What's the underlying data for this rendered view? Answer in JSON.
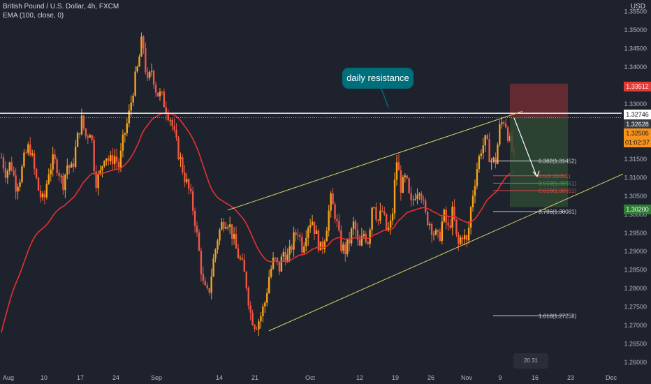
{
  "header": {
    "symbol_line": "British Pound / U.S. Dollar, 4h, FXCM",
    "indicator_line": "EMA (100, close, 0)"
  },
  "currency": "USD",
  "callout": {
    "text": "daily resistance"
  },
  "colors": {
    "background": "#1e222d",
    "bull": "#f7a21b",
    "bear": "#f05545",
    "ema": "#e6302f",
    "channel": "#d6d064",
    "resistance": "#ffffff",
    "stop_zone": "#7a2f33",
    "target_zone": "#2e4a33",
    "callout": "#006f7b"
  },
  "chart_data": {
    "type": "candlestick",
    "title": "British Pound / U.S. Dollar, 4h, FXCM",
    "y_axis": {
      "side": "right",
      "range": [
        1.2575,
        1.3555
      ],
      "ticks": [
        "1.35500",
        "1.35000",
        "1.34500",
        "1.34000",
        "1.33000",
        "1.32500",
        "1.32000",
        "1.31500",
        "1.31000",
        "1.30500",
        "1.30000",
        "1.29500",
        "1.29000",
        "1.28500",
        "1.28000",
        "1.27500",
        "1.27000",
        "1.26500",
        "1.26000"
      ]
    },
    "x_axis": {
      "ticks": [
        "Aug",
        "10",
        "17",
        "24",
        "Sep",
        "14",
        "21",
        "Oct",
        "12",
        "19",
        "26",
        "Nov",
        "9",
        "16",
        "23",
        "Dec"
      ]
    },
    "price_path": [
      [
        1.3155,
        1.3112,
        1.3143,
        1.308,
        1.3102,
        1.3158,
        1.3188,
        1.312,
        1.306,
        1.303
      ],
      [
        1.3118,
        1.3145,
        1.313,
        1.308,
        1.3135,
        1.312,
        1.3195,
        1.3258,
        1.321,
        1.3235
      ],
      [
        1.309,
        1.311,
        1.317,
        1.314,
        1.316,
        1.313,
        1.321,
        1.326,
        1.334,
        1.34
      ],
      [
        1.3482,
        1.335,
        1.3395,
        1.333,
        1.332,
        1.329,
        1.326,
        1.32,
        1.315,
        1.31
      ],
      [
        1.306,
        1.3,
        1.29,
        1.28,
        1.278,
        1.287,
        1.294,
        1.298,
        1.299,
        1.295
      ],
      [
        1.29,
        1.287,
        1.282,
        1.273,
        1.27,
        1.272,
        1.276,
        1.284,
        1.288,
        1.285
      ],
      [
        1.29,
        1.288,
        1.293,
        1.296,
        1.291,
        1.297,
        1.299,
        1.294,
        1.29,
        1.296
      ],
      [
        1.304,
        1.3,
        1.292,
        1.29,
        1.293,
        1.298,
        1.29,
        1.295,
        1.293,
        1.305
      ],
      [
        1.298,
        1.301,
        1.295,
        1.298,
        1.315,
        1.307,
        1.31,
        1.302,
        1.306,
        1.308
      ],
      [
        1.3,
        1.298,
        1.295,
        1.293,
        1.3,
        1.296,
        1.301,
        1.291,
        1.295,
        1.292
      ],
      [
        1.304,
        1.312,
        1.318,
        1.32,
        1.315,
        1.314,
        1.324,
        1.3262,
        1.32,
        1.315
      ]
    ],
    "ema_label": "EMA (100, close, 0)",
    "levels": {
      "daily_resistance": "1.32746",
      "entry": "1.32628",
      "current": "1.32506",
      "stop": "1.33512",
      "target": "1.30200",
      "countdown": "01:02:37"
    },
    "fibonacci": [
      {
        "label": "0.382(1.31452)",
        "value": 1.31452
      },
      {
        "label": "0.5(1.31051)",
        "value": 1.31051
      },
      {
        "label": "0.559(1.30851)",
        "value": 1.30851
      },
      {
        "label": "0.618(1.30651)",
        "value": 1.30651
      },
      {
        "label": "0.786(1.30081)",
        "value": 1.30081
      },
      {
        "label": "1.618(1.27258)",
        "value": 1.27258
      }
    ],
    "annotation": "daily resistance",
    "grid": false
  },
  "watermark": "20 31"
}
